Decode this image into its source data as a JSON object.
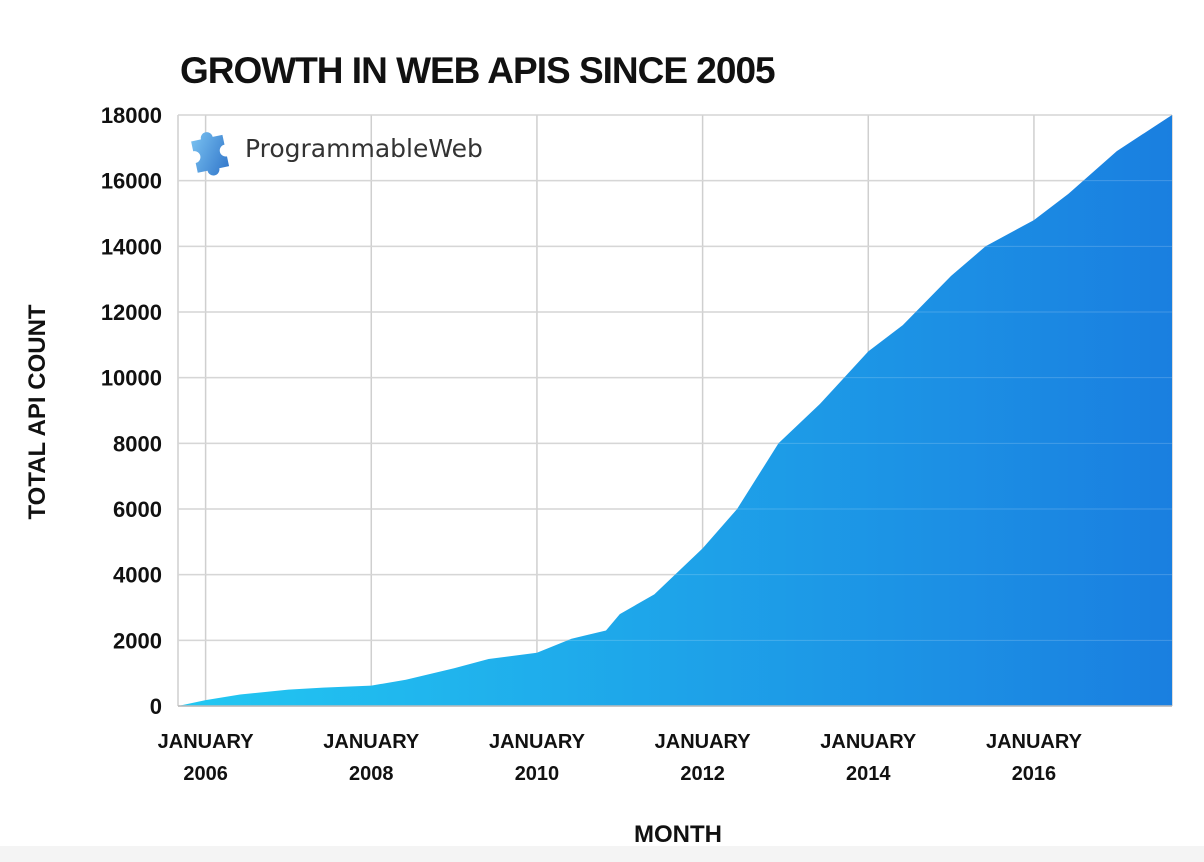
{
  "chart_data": {
    "type": "area",
    "title": "GROWTH IN WEB APIS SINCE 2005",
    "xlabel": "MONTH",
    "ylabel": "TOTAL API COUNT",
    "ylim": [
      0,
      18000
    ],
    "xlim": [
      "2005-09",
      "2017-09"
    ],
    "yticks": [
      0,
      2000,
      4000,
      6000,
      8000,
      10000,
      12000,
      14000,
      16000,
      18000
    ],
    "xticks": [
      {
        "date": "2006-01",
        "label": [
          "JANUARY",
          "2006"
        ]
      },
      {
        "date": "2008-01",
        "label": [
          "JANUARY",
          "2008"
        ]
      },
      {
        "date": "2010-01",
        "label": [
          "JANUARY",
          "2010"
        ]
      },
      {
        "date": "2012-01",
        "label": [
          "JANUARY",
          "2012"
        ]
      },
      {
        "date": "2014-01",
        "label": [
          "JANUARY",
          "2014"
        ]
      },
      {
        "date": "2016-01",
        "label": [
          "JANUARY",
          "2016"
        ]
      }
    ],
    "grid": true,
    "colors": {
      "start": "#22c8f2",
      "end": "#1a7fe0"
    },
    "x": [
      "2005-09",
      "2006-01",
      "2006-06",
      "2007-01",
      "2007-06",
      "2008-01",
      "2008-06",
      "2009-01",
      "2009-06",
      "2010-01",
      "2010-06",
      "2010-11",
      "2011-01",
      "2011-06",
      "2012-01",
      "2012-06",
      "2012-12",
      "2013-06",
      "2014-01",
      "2014-06",
      "2015-01",
      "2015-06",
      "2016-01",
      "2016-06",
      "2017-01",
      "2017-09"
    ],
    "values": [
      0,
      180,
      350,
      500,
      560,
      620,
      800,
      1150,
      1430,
      1620,
      2050,
      2300,
      2800,
      3400,
      4800,
      6000,
      8000,
      9200,
      10800,
      11600,
      13100,
      14000,
      14800,
      15600,
      16900,
      18000
    ]
  },
  "watermark": {
    "text": "ProgrammableWeb",
    "icon": "puzzle-piece-icon",
    "color": "#3b8fd8"
  }
}
